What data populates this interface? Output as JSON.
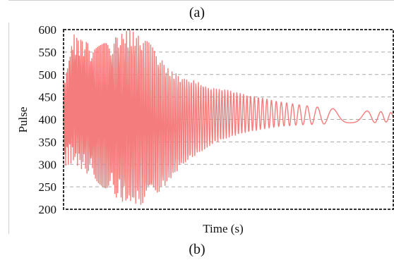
{
  "captions": {
    "top": "(a)",
    "bottom": "(b)"
  },
  "chart_data": {
    "type": "line",
    "xlabel": "Time (s)",
    "ylabel": "Pulse",
    "ylim": [
      200,
      600
    ],
    "yticks": [
      200,
      250,
      300,
      350,
      400,
      450,
      500,
      550,
      600
    ],
    "grid": true,
    "series": [
      {
        "color": "#f47c7c",
        "envelope_upper": [
          [
            0,
            480
          ],
          [
            0.03,
            590
          ],
          [
            0.1,
            560
          ],
          [
            0.2,
            600
          ],
          [
            0.26,
            570
          ],
          [
            0.32,
            510
          ],
          [
            0.36,
            495
          ],
          [
            0.4,
            485
          ],
          [
            0.45,
            470
          ],
          [
            0.5,
            465
          ],
          [
            0.55,
            455
          ],
          [
            0.6,
            448
          ],
          [
            0.65,
            440
          ],
          [
            0.72,
            432
          ],
          [
            0.8,
            425
          ],
          [
            0.88,
            420
          ],
          [
            0.95,
            418
          ],
          [
            1,
            415
          ]
        ],
        "envelope_lower": [
          [
            0,
            295
          ],
          [
            0.03,
            305
          ],
          [
            0.08,
            275
          ],
          [
            0.12,
            250
          ],
          [
            0.18,
            215
          ],
          [
            0.24,
            210
          ],
          [
            0.3,
            245
          ],
          [
            0.35,
            290
          ],
          [
            0.4,
            320
          ],
          [
            0.45,
            345
          ],
          [
            0.5,
            360
          ],
          [
            0.55,
            370
          ],
          [
            0.6,
            378
          ],
          [
            0.65,
            384
          ],
          [
            0.72,
            388
          ],
          [
            0.8,
            390
          ],
          [
            0.88,
            392
          ],
          [
            0.95,
            393
          ],
          [
            1,
            395
          ]
        ]
      }
    ]
  }
}
